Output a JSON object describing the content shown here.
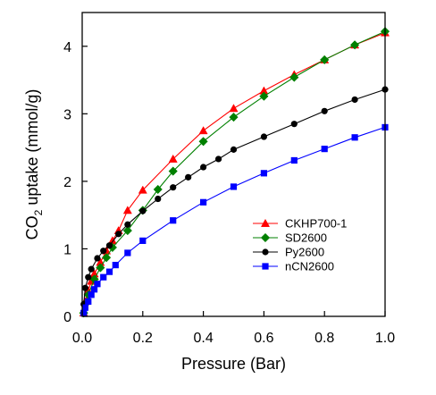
{
  "chart_data": {
    "type": "line",
    "xlabel": "Pressure (Bar)",
    "ylabel": {
      "prefix": "CO",
      "subscript": "2",
      "suffix": " uptake (mmol/g)"
    },
    "xlim": [
      0,
      1.0
    ],
    "ylim": [
      0,
      4.5
    ],
    "xticks": [
      0.0,
      0.2,
      0.4,
      0.6,
      0.8,
      1.0
    ],
    "xtick_labels": [
      "0.0",
      "0.2",
      "0.4",
      "0.6",
      "0.8",
      "1.0"
    ],
    "yticks": [
      0,
      1,
      2,
      3,
      4
    ],
    "ytick_labels": [
      "0",
      "1",
      "2",
      "3",
      "4"
    ],
    "grid": false,
    "legend_position": "center-right",
    "series": [
      {
        "name": "CKHP700-1",
        "color": "#ff0000",
        "marker": "triangle",
        "points": [
          [
            0.005,
            0.05
          ],
          [
            0.01,
            0.22
          ],
          [
            0.02,
            0.38
          ],
          [
            0.03,
            0.52
          ],
          [
            0.04,
            0.63
          ],
          [
            0.06,
            0.8
          ],
          [
            0.08,
            0.97
          ],
          [
            0.1,
            1.12
          ],
          [
            0.12,
            1.27
          ],
          [
            0.15,
            1.57
          ],
          [
            0.2,
            1.87
          ],
          [
            0.3,
            2.33
          ],
          [
            0.4,
            2.75
          ],
          [
            0.5,
            3.08
          ],
          [
            0.6,
            3.34
          ],
          [
            0.7,
            3.58
          ],
          [
            0.8,
            3.8
          ],
          [
            0.9,
            4.02
          ],
          [
            1.0,
            4.2
          ]
        ]
      },
      {
        "name": "SD2600",
        "color": "#008000",
        "marker": "diamond",
        "points": [
          [
            0.005,
            0.05
          ],
          [
            0.01,
            0.18
          ],
          [
            0.02,
            0.32
          ],
          [
            0.04,
            0.55
          ],
          [
            0.06,
            0.72
          ],
          [
            0.08,
            0.87
          ],
          [
            0.1,
            1.02
          ],
          [
            0.15,
            1.27
          ],
          [
            0.2,
            1.57
          ],
          [
            0.25,
            1.88
          ],
          [
            0.3,
            2.15
          ],
          [
            0.4,
            2.59
          ],
          [
            0.5,
            2.95
          ],
          [
            0.6,
            3.26
          ],
          [
            0.7,
            3.54
          ],
          [
            0.8,
            3.8
          ],
          [
            0.9,
            4.02
          ],
          [
            1.0,
            4.22
          ]
        ]
      },
      {
        "name": "Py2600",
        "color": "#000000",
        "marker": "circle",
        "points": [
          [
            0.005,
            0.18
          ],
          [
            0.01,
            0.42
          ],
          [
            0.02,
            0.58
          ],
          [
            0.03,
            0.7
          ],
          [
            0.05,
            0.86
          ],
          [
            0.07,
            0.97
          ],
          [
            0.09,
            1.05
          ],
          [
            0.12,
            1.22
          ],
          [
            0.15,
            1.36
          ],
          [
            0.2,
            1.56
          ],
          [
            0.25,
            1.74
          ],
          [
            0.3,
            1.91
          ],
          [
            0.35,
            2.06
          ],
          [
            0.4,
            2.21
          ],
          [
            0.45,
            2.33
          ],
          [
            0.5,
            2.47
          ],
          [
            0.6,
            2.66
          ],
          [
            0.7,
            2.85
          ],
          [
            0.8,
            3.04
          ],
          [
            0.9,
            3.21
          ],
          [
            1.0,
            3.36
          ]
        ]
      },
      {
        "name": "nCN2600",
        "color": "#0000ff",
        "marker": "square",
        "points": [
          [
            0.005,
            0.05
          ],
          [
            0.01,
            0.13
          ],
          [
            0.02,
            0.22
          ],
          [
            0.03,
            0.32
          ],
          [
            0.04,
            0.4
          ],
          [
            0.05,
            0.48
          ],
          [
            0.07,
            0.58
          ],
          [
            0.09,
            0.66
          ],
          [
            0.11,
            0.76
          ],
          [
            0.15,
            0.94
          ],
          [
            0.2,
            1.12
          ],
          [
            0.3,
            1.42
          ],
          [
            0.4,
            1.69
          ],
          [
            0.5,
            1.92
          ],
          [
            0.6,
            2.12
          ],
          [
            0.7,
            2.31
          ],
          [
            0.8,
            2.48
          ],
          [
            0.9,
            2.65
          ],
          [
            1.0,
            2.8
          ]
        ]
      }
    ]
  }
}
